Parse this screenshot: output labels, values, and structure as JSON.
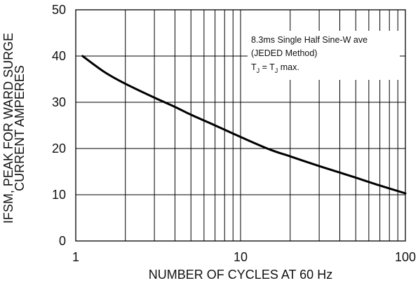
{
  "chart_data": {
    "type": "line",
    "xscale": "log",
    "xlim": [
      1,
      100
    ],
    "ylim": [
      0,
      50
    ],
    "grid": true,
    "xlabel": "NUMBER OF CYCLES AT 60 Hz",
    "ylabel_line1": "IFSM, PEAK FOR WARD SURGE",
    "ylabel_line2": "CURRENT AMPERES",
    "x_ticks": [
      "1",
      "10",
      "100"
    ],
    "y_ticks": [
      "0",
      "10",
      "20",
      "30",
      "40",
      "50"
    ],
    "annotation": {
      "line1": "8.3ms Single Half Sine-W ave",
      "line2": "(JEDED Method)",
      "line3_a": "T",
      "line3_sub_a": "J",
      "line3_b": " = T",
      "line3_sub_b": "J",
      "line3_c": " max."
    },
    "series": [
      {
        "x": [
          1.1,
          1.5,
          2,
          3,
          4,
          5,
          7,
          10,
          15,
          20,
          30,
          40,
          50,
          70,
          100
        ],
        "values": [
          40,
          36.5,
          34,
          31,
          29,
          27.3,
          25,
          22.5,
          19.8,
          18.3,
          16.2,
          14.8,
          13.7,
          12.0,
          10.3
        ]
      }
    ]
  }
}
